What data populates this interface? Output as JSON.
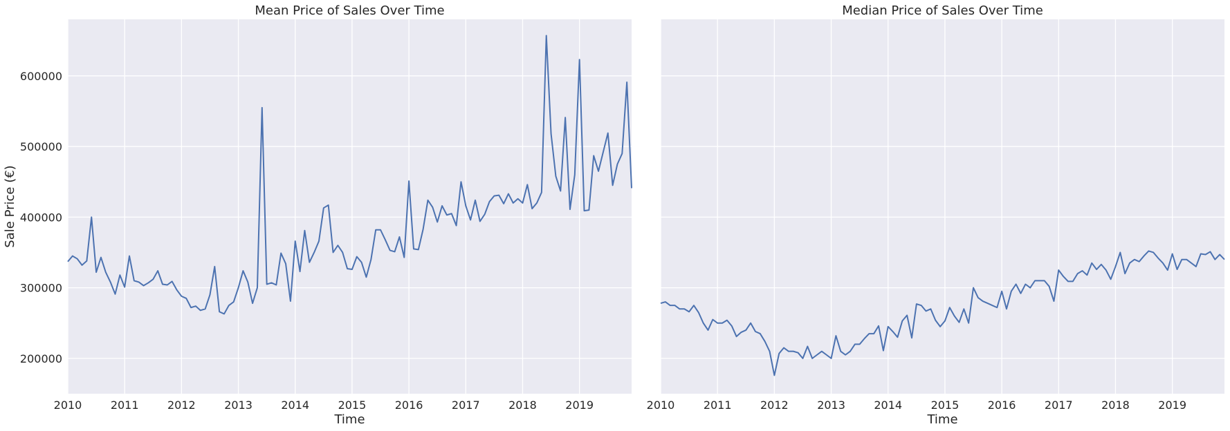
{
  "chart_data": [
    {
      "type": "line",
      "title": "Mean Price of Sales Over Time",
      "xlabel": "Time",
      "ylabel": "Sale Price (€)",
      "xlim": [
        2010.0,
        2019.9167
      ],
      "ylim": [
        150000,
        680000
      ],
      "x_ticks": [
        "2010",
        "2011",
        "2012",
        "2013",
        "2014",
        "2015",
        "2016",
        "2017",
        "2018",
        "2019"
      ],
      "y_ticks": [
        200000,
        300000,
        400000,
        500000,
        600000
      ],
      "y_tick_labels": [
        "200000",
        "300000",
        "400000",
        "500000",
        "600000"
      ],
      "grid": true,
      "x_start": "2010-01",
      "x_step": "1 month",
      "series": [
        {
          "color": "#4c72b0",
          "values": [
            337000,
            345000,
            341000,
            332000,
            338000,
            400000,
            322000,
            343000,
            322000,
            308000,
            291000,
            318000,
            301000,
            345000,
            310000,
            308000,
            303000,
            307000,
            312000,
            324000,
            305000,
            304000,
            309000,
            297000,
            288000,
            285000,
            272000,
            274000,
            268000,
            270000,
            290000,
            330000,
            266000,
            263000,
            275000,
            280000,
            300000,
            324000,
            308000,
            278000,
            300000,
            555000,
            305000,
            307000,
            304000,
            349000,
            334000,
            281000,
            366000,
            323000,
            381000,
            336000,
            350000,
            366000,
            413000,
            417000,
            350000,
            360000,
            350000,
            327000,
            326000,
            344000,
            336000,
            315000,
            340000,
            382000,
            382000,
            368000,
            353000,
            351000,
            372000,
            343000,
            451000,
            355000,
            354000,
            383000,
            424000,
            414000,
            393000,
            416000,
            403000,
            405000,
            388000,
            450000,
            416000,
            396000,
            424000,
            394000,
            404000,
            422000,
            430000,
            431000,
            419000,
            433000,
            420000,
            426000,
            420000,
            446000,
            412000,
            420000,
            435000,
            657000,
            518000,
            458000,
            437000,
            541000,
            411000,
            460000,
            623000,
            409000,
            410000,
            487000,
            465000,
            492000,
            519000,
            445000,
            475000,
            490000,
            591000,
            441000
          ]
        }
      ]
    },
    {
      "type": "line",
      "title": "Median Price of Sales Over Time",
      "xlabel": "Time",
      "ylabel": "",
      "xlim": [
        2010.0,
        2019.9167
      ],
      "ylim": [
        150000,
        680000
      ],
      "x_ticks": [
        "2010",
        "2011",
        "2012",
        "2013",
        "2014",
        "2015",
        "2016",
        "2017",
        "2018",
        "2019"
      ],
      "grid": true,
      "x_start": "2010-01",
      "x_step": "1 month",
      "series": [
        {
          "color": "#4c72b0",
          "values": [
            278000,
            280000,
            275000,
            275000,
            270000,
            270000,
            266000,
            275000,
            265000,
            250000,
            240000,
            255000,
            250000,
            250000,
            254000,
            246000,
            231000,
            237000,
            240000,
            250000,
            238000,
            235000,
            224000,
            210000,
            176000,
            207000,
            215000,
            210000,
            210000,
            208000,
            200000,
            217000,
            200000,
            205000,
            210000,
            205000,
            200000,
            232000,
            210000,
            205000,
            210000,
            220000,
            220000,
            228000,
            235000,
            235000,
            246000,
            211000,
            245000,
            238000,
            230000,
            253000,
            261000,
            229000,
            277000,
            275000,
            267000,
            270000,
            254000,
            245000,
            253000,
            272000,
            260000,
            251000,
            270000,
            250000,
            300000,
            286000,
            281000,
            278000,
            275000,
            272000,
            295000,
            270000,
            295000,
            305000,
            292000,
            305000,
            300000,
            310000,
            310000,
            310000,
            302000,
            281000,
            325000,
            316000,
            309000,
            309000,
            320000,
            324000,
            318000,
            335000,
            326000,
            333000,
            325000,
            312000,
            330000,
            350000,
            320000,
            335000,
            340000,
            337000,
            345000,
            352000,
            350000,
            342000,
            335000,
            325000,
            348000,
            326000,
            340000,
            340000,
            335000,
            330000,
            348000,
            347000,
            351000,
            340000,
            347000,
            340000
          ]
        }
      ]
    }
  ]
}
